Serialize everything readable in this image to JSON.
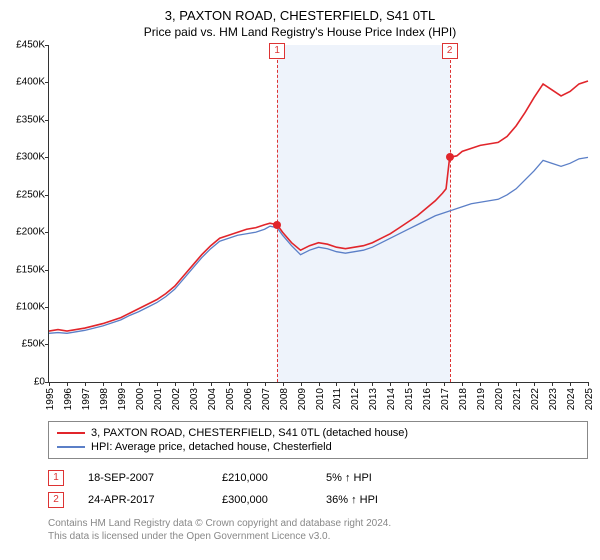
{
  "title": "3, PAXTON ROAD, CHESTERFIELD, S41 0TL",
  "subtitle": "Price paid vs. HM Land Registry's House Price Index (HPI)",
  "chart": {
    "type": "line",
    "background_color": "#ffffff",
    "shade_color": "#eef3fb",
    "axis_color": "#333333",
    "y": {
      "min": 0,
      "max": 450000,
      "step": 50000,
      "labels": [
        "£0",
        "£50K",
        "£100K",
        "£150K",
        "£200K",
        "£250K",
        "£300K",
        "£350K",
        "£400K",
        "£450K"
      ]
    },
    "x": {
      "min": 1995,
      "max": 2025,
      "step": 1,
      "labels": [
        "1995",
        "1996",
        "1997",
        "1998",
        "1999",
        "2000",
        "2001",
        "2002",
        "2003",
        "2004",
        "2005",
        "2006",
        "2007",
        "2008",
        "2009",
        "2010",
        "2011",
        "2012",
        "2013",
        "2014",
        "2015",
        "2016",
        "2017",
        "2018",
        "2019",
        "2020",
        "2021",
        "2022",
        "2023",
        "2024",
        "2025"
      ]
    },
    "series": [
      {
        "name": "3, PAXTON ROAD, CHESTERFIELD, S41 0TL (detached house)",
        "color": "#e1252b",
        "width": 1.6,
        "points": [
          [
            1995.0,
            68
          ],
          [
            1995.5,
            70
          ],
          [
            1996.0,
            68
          ],
          [
            1996.5,
            70
          ],
          [
            1997.0,
            72
          ],
          [
            1997.5,
            75
          ],
          [
            1998.0,
            78
          ],
          [
            1998.5,
            82
          ],
          [
            1999.0,
            86
          ],
          [
            1999.5,
            92
          ],
          [
            2000.0,
            98
          ],
          [
            2000.5,
            104
          ],
          [
            2001.0,
            110
          ],
          [
            2001.5,
            118
          ],
          [
            2002.0,
            128
          ],
          [
            2002.5,
            142
          ],
          [
            2003.0,
            156
          ],
          [
            2003.5,
            170
          ],
          [
            2004.0,
            182
          ],
          [
            2004.5,
            192
          ],
          [
            2005.0,
            196
          ],
          [
            2005.5,
            200
          ],
          [
            2006.0,
            204
          ],
          [
            2006.5,
            206
          ],
          [
            2007.0,
            210
          ],
          [
            2007.3,
            212
          ],
          [
            2007.7,
            210
          ],
          [
            2008.0,
            200
          ],
          [
            2008.5,
            186
          ],
          [
            2009.0,
            176
          ],
          [
            2009.5,
            182
          ],
          [
            2010.0,
            186
          ],
          [
            2010.5,
            184
          ],
          [
            2011.0,
            180
          ],
          [
            2011.5,
            178
          ],
          [
            2012.0,
            180
          ],
          [
            2012.5,
            182
          ],
          [
            2013.0,
            186
          ],
          [
            2013.5,
            192
          ],
          [
            2014.0,
            198
          ],
          [
            2014.5,
            206
          ],
          [
            2015.0,
            214
          ],
          [
            2015.5,
            222
          ],
          [
            2016.0,
            232
          ],
          [
            2016.5,
            242
          ],
          [
            2016.9,
            252
          ],
          [
            2017.1,
            258
          ],
          [
            2017.3,
            300
          ],
          [
            2017.7,
            302
          ],
          [
            2018.0,
            308
          ],
          [
            2018.5,
            312
          ],
          [
            2019.0,
            316
          ],
          [
            2019.5,
            318
          ],
          [
            2020.0,
            320
          ],
          [
            2020.5,
            328
          ],
          [
            2021.0,
            342
          ],
          [
            2021.5,
            360
          ],
          [
            2022.0,
            380
          ],
          [
            2022.5,
            398
          ],
          [
            2023.0,
            390
          ],
          [
            2023.5,
            382
          ],
          [
            2024.0,
            388
          ],
          [
            2024.5,
            398
          ],
          [
            2025.0,
            402
          ]
        ]
      },
      {
        "name": "HPI: Average price, detached house, Chesterfield",
        "color": "#5b7fc7",
        "width": 1.3,
        "points": [
          [
            1995.0,
            65
          ],
          [
            1995.5,
            66
          ],
          [
            1996.0,
            65
          ],
          [
            1996.5,
            67
          ],
          [
            1997.0,
            69
          ],
          [
            1997.5,
            72
          ],
          [
            1998.0,
            75
          ],
          [
            1998.5,
            79
          ],
          [
            1999.0,
            83
          ],
          [
            1999.5,
            89
          ],
          [
            2000.0,
            94
          ],
          [
            2000.5,
            100
          ],
          [
            2001.0,
            106
          ],
          [
            2001.5,
            114
          ],
          [
            2002.0,
            124
          ],
          [
            2002.5,
            138
          ],
          [
            2003.0,
            152
          ],
          [
            2003.5,
            166
          ],
          [
            2004.0,
            178
          ],
          [
            2004.5,
            188
          ],
          [
            2005.0,
            192
          ],
          [
            2005.5,
            196
          ],
          [
            2006.0,
            198
          ],
          [
            2006.5,
            200
          ],
          [
            2007.0,
            204
          ],
          [
            2007.3,
            208
          ],
          [
            2007.7,
            206
          ],
          [
            2008.0,
            196
          ],
          [
            2008.5,
            182
          ],
          [
            2009.0,
            170
          ],
          [
            2009.5,
            176
          ],
          [
            2010.0,
            180
          ],
          [
            2010.5,
            178
          ],
          [
            2011.0,
            174
          ],
          [
            2011.5,
            172
          ],
          [
            2012.0,
            174
          ],
          [
            2012.5,
            176
          ],
          [
            2013.0,
            180
          ],
          [
            2013.5,
            186
          ],
          [
            2014.0,
            192
          ],
          [
            2014.5,
            198
          ],
          [
            2015.0,
            204
          ],
          [
            2015.5,
            210
          ],
          [
            2016.0,
            216
          ],
          [
            2016.5,
            222
          ],
          [
            2017.0,
            226
          ],
          [
            2017.5,
            230
          ],
          [
            2018.0,
            234
          ],
          [
            2018.5,
            238
          ],
          [
            2019.0,
            240
          ],
          [
            2019.5,
            242
          ],
          [
            2020.0,
            244
          ],
          [
            2020.5,
            250
          ],
          [
            2021.0,
            258
          ],
          [
            2021.5,
            270
          ],
          [
            2022.0,
            282
          ],
          [
            2022.5,
            296
          ],
          [
            2023.0,
            292
          ],
          [
            2023.5,
            288
          ],
          [
            2024.0,
            292
          ],
          [
            2024.5,
            298
          ],
          [
            2025.0,
            300
          ]
        ]
      }
    ],
    "sales": [
      {
        "n": "1",
        "year": 2007.7,
        "price": 210000
      },
      {
        "n": "2",
        "year": 2017.3,
        "price": 300000
      }
    ],
    "shade_range": [
      2007.7,
      2017.3
    ]
  },
  "legend": {
    "items": [
      {
        "color": "#e1252b",
        "label": "3, PAXTON ROAD, CHESTERFIELD, S41 0TL (detached house)"
      },
      {
        "color": "#5b7fc7",
        "label": "HPI: Average price, detached house, Chesterfield"
      }
    ]
  },
  "datarows": [
    {
      "n": "1",
      "date": "18-SEP-2007",
      "price": "£210,000",
      "pct": "5% ↑ HPI"
    },
    {
      "n": "2",
      "date": "24-APR-2017",
      "price": "£300,000",
      "pct": "36% ↑ HPI"
    }
  ],
  "footer": {
    "line1": "Contains HM Land Registry data © Crown copyright and database right 2024.",
    "line2": "This data is licensed under the Open Government Licence v3.0."
  }
}
